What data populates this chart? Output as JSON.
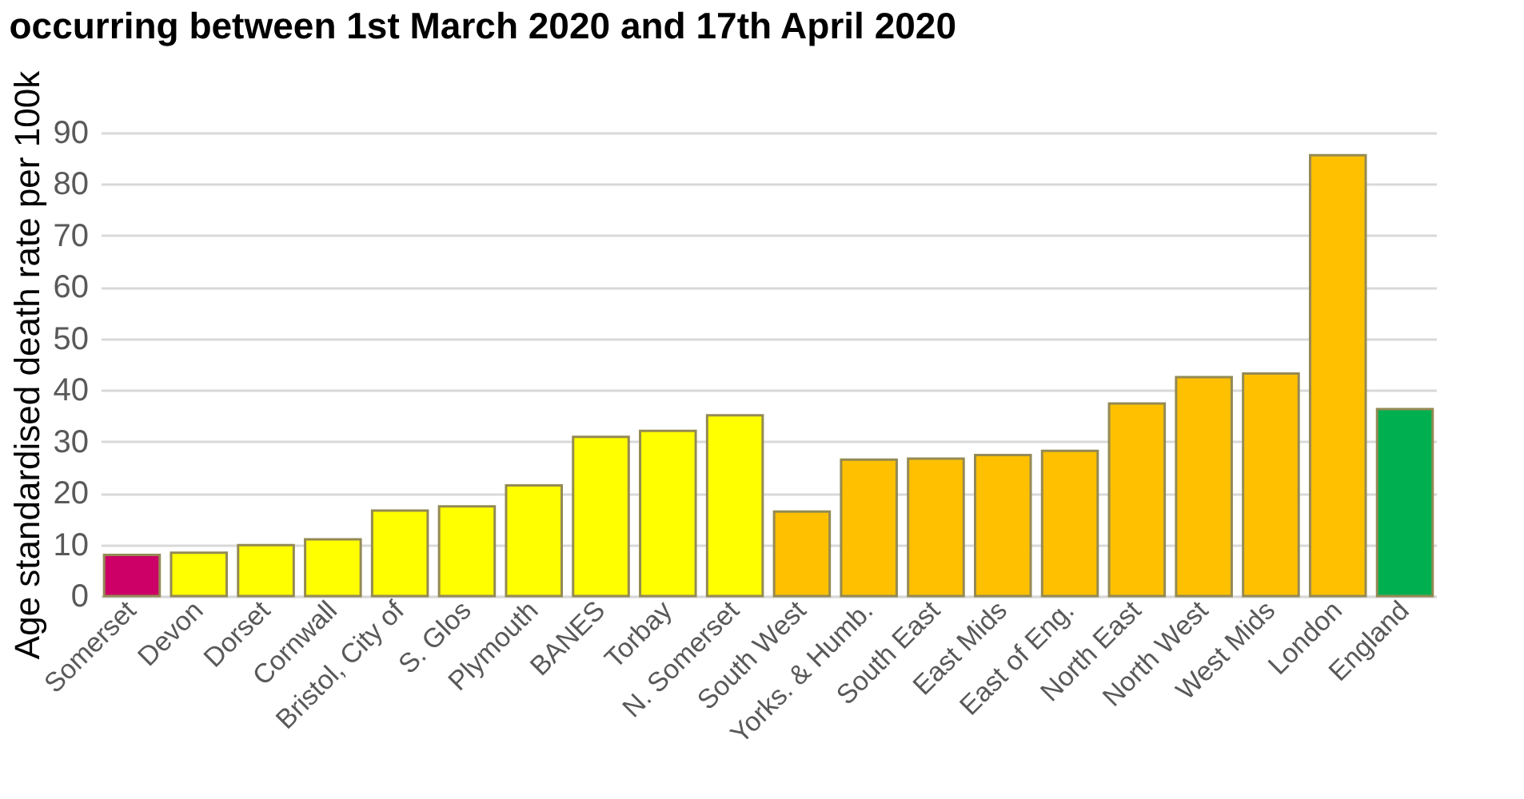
{
  "chart_data": {
    "type": "bar",
    "title": "occurring between 1st March 2020 and 17th April 2020",
    "ylabel": "Age standardised death rate per 100k",
    "categories": [
      "Somerset",
      "Devon",
      "Dorset",
      "Cornwall",
      "Bristol, City of",
      "S. Glos",
      "Plymouth",
      "BANES",
      "Torbay",
      "N. Somerset",
      "South West",
      "Yorks. & Humb.",
      "South East",
      "East Mids",
      "East of Eng.",
      "North East",
      "North West",
      "West Mids",
      "London",
      "England"
    ],
    "values": [
      8.0,
      8.4,
      9.9,
      11.0,
      16.6,
      17.4,
      21.5,
      30.9,
      32.1,
      35.1,
      16.4,
      26.5,
      26.7,
      27.4,
      28.2,
      37.4,
      42.5,
      43.2,
      85.6,
      36.3
    ],
    "colors": [
      "#cc0066",
      "#ffff00",
      "#ffff00",
      "#ffff00",
      "#ffff00",
      "#ffff00",
      "#ffff00",
      "#ffff00",
      "#ffff00",
      "#ffff00",
      "#ffc000",
      "#ffc000",
      "#ffc000",
      "#ffc000",
      "#ffc000",
      "#ffc000",
      "#ffc000",
      "#ffc000",
      "#ffc000",
      "#00b050"
    ],
    "ylim": [
      0,
      90
    ],
    "yticks": [
      0,
      10,
      20,
      30,
      40,
      50,
      60,
      70,
      80,
      90
    ],
    "grid": "y"
  }
}
